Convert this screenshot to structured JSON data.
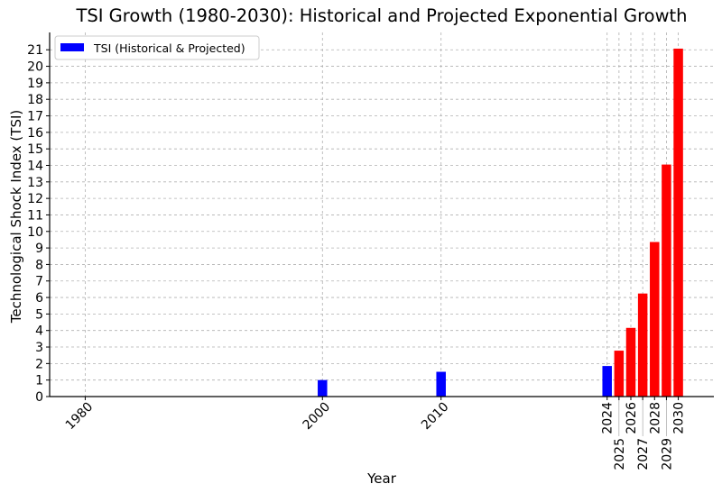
{
  "chart_data": {
    "type": "bar",
    "title": "TSI Growth (1980-2030): Historical and Projected Exponential Growth",
    "xlabel": "Year",
    "ylabel": "Technological Shock Index (TSI)",
    "x": [
      1980,
      2000,
      2010,
      2024,
      2025,
      2026,
      2027,
      2028,
      2029,
      2030
    ],
    "values": [
      0,
      1.0,
      1.5,
      1.85,
      2.78,
      4.16,
      6.24,
      9.36,
      14.05,
      21.07
    ],
    "kind": [
      "historical",
      "historical",
      "historical",
      "historical",
      "projected",
      "projected",
      "projected",
      "projected",
      "projected",
      "projected"
    ],
    "colors": {
      "historical": "#0000ff",
      "projected": "#ff0000"
    },
    "xtick_labels": [
      "1980",
      "2000",
      "2010",
      "2024",
      "2025",
      "2026",
      "2027",
      "2028",
      "2029",
      "2030"
    ],
    "yticks": [
      0,
      1,
      2,
      3,
      4,
      5,
      6,
      7,
      8,
      9,
      10,
      11,
      12,
      13,
      14,
      15,
      16,
      17,
      18,
      19,
      20,
      21
    ],
    "xlim": [
      1977,
      2033
    ],
    "ylim": [
      0,
      22.05
    ],
    "grid": true,
    "legend": {
      "position": "top-left",
      "entries": [
        "TSI (Historical & Projected)"
      ]
    }
  }
}
